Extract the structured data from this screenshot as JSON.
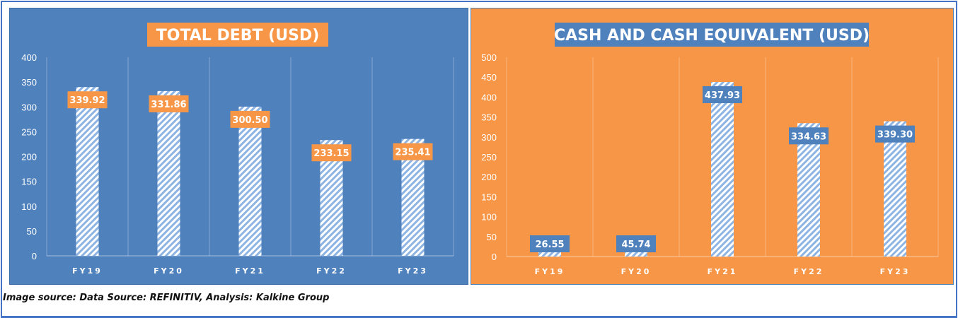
{
  "chart_data": [
    {
      "type": "bar",
      "title": "TOTAL DEBT (USD)",
      "categories": [
        "FY19",
        "FY20",
        "FY21",
        "FY22",
        "FY23"
      ],
      "values": [
        339.92,
        331.86,
        300.5,
        233.15,
        235.41
      ],
      "labels": [
        "339.92",
        "331.86",
        "300.50",
        "233.15",
        "235.41"
      ],
      "ylim": [
        0,
        400
      ],
      "yticks": [
        0,
        50,
        100,
        150,
        200,
        250,
        300,
        350,
        400
      ],
      "xlabel": "",
      "ylabel": "",
      "bg": "#4f81bd",
      "accent": "#f79646"
    },
    {
      "type": "bar",
      "title": "CASH AND CASH EQUIVALENT (USD)",
      "categories": [
        "FY19",
        "FY20",
        "FY21",
        "FY22",
        "FY23"
      ],
      "values": [
        26.55,
        45.74,
        437.93,
        334.63,
        339.3
      ],
      "labels": [
        "26.55",
        "45.74",
        "437.93",
        "334.63",
        "339.30"
      ],
      "ylim": [
        0,
        500
      ],
      "yticks": [
        0,
        50,
        100,
        150,
        200,
        250,
        300,
        350,
        400,
        450,
        500
      ],
      "xlabel": "",
      "ylabel": "",
      "bg": "#f79646",
      "accent": "#4f81bd"
    }
  ],
  "caption": "Image source: Data Source: REFINITIV, Analysis: Kalkine Group"
}
